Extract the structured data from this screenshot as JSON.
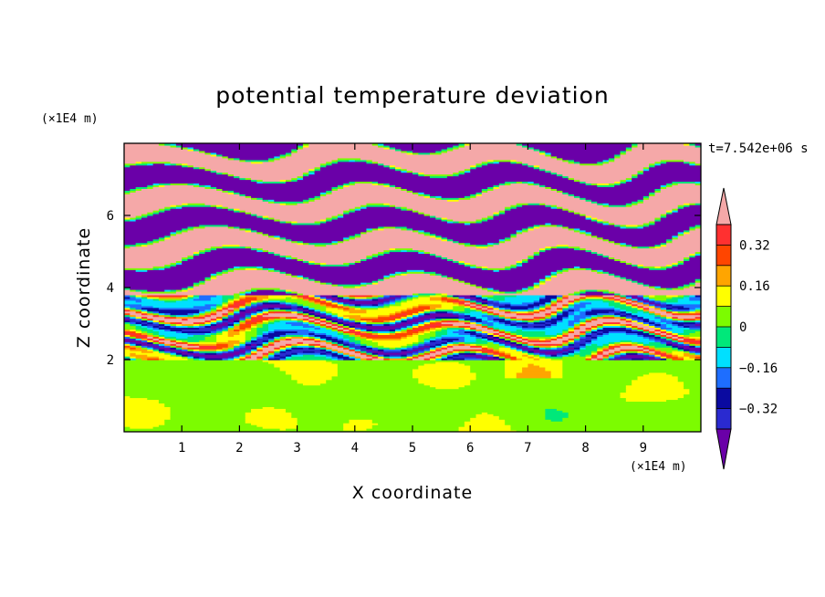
{
  "chart_data": {
    "type": "heatmap",
    "title": "potential temperature deviation",
    "xlabel": "X coordinate",
    "ylabel": "Z coordinate",
    "x_unit": "(×1E4 m)",
    "y_unit": "(×1E4 m)",
    "time_label": "t=7.542e+06 s",
    "xlim": [
      0,
      10
    ],
    "ylim": [
      0,
      8
    ],
    "xticks": [
      1,
      2,
      3,
      4,
      5,
      6,
      7,
      8,
      9
    ],
    "yticks": [
      2,
      4,
      6
    ],
    "colorbar": {
      "levels": [
        -0.4,
        -0.32,
        -0.24,
        -0.16,
        -0.08,
        0,
        0.08,
        0.16,
        0.24,
        0.32,
        0.4
      ],
      "labeled_levels": [
        "0.32",
        "0.16",
        "0",
        "−0.16",
        "−0.32"
      ],
      "colors_low_to_high": [
        "#6a00a8",
        "#2a2ad0",
        "#0a0aa0",
        "#1e6eff",
        "#00e0ff",
        "#00e87a",
        "#7cfc00",
        "#ffff00",
        "#ffa500",
        "#ff4500",
        "#ff3030",
        "#f5a8a8"
      ]
    },
    "bands": [
      {
        "z": [
          0.0,
          2.0
        ],
        "pattern": "lower turbulent region, mostly 0 to 0.08 (green / yellow-green)"
      },
      {
        "z": [
          2.0,
          3.8
        ],
        "pattern": "mixed layers spanning −0.32 to 0.4 (purple, blue, green, yellow, red, pink)"
      },
      {
        "z": [
          3.8,
          8.0
        ],
        "pattern": "alternating horizontal layers of < −0.4 (purple) and > 0.4 (pink)"
      }
    ]
  }
}
